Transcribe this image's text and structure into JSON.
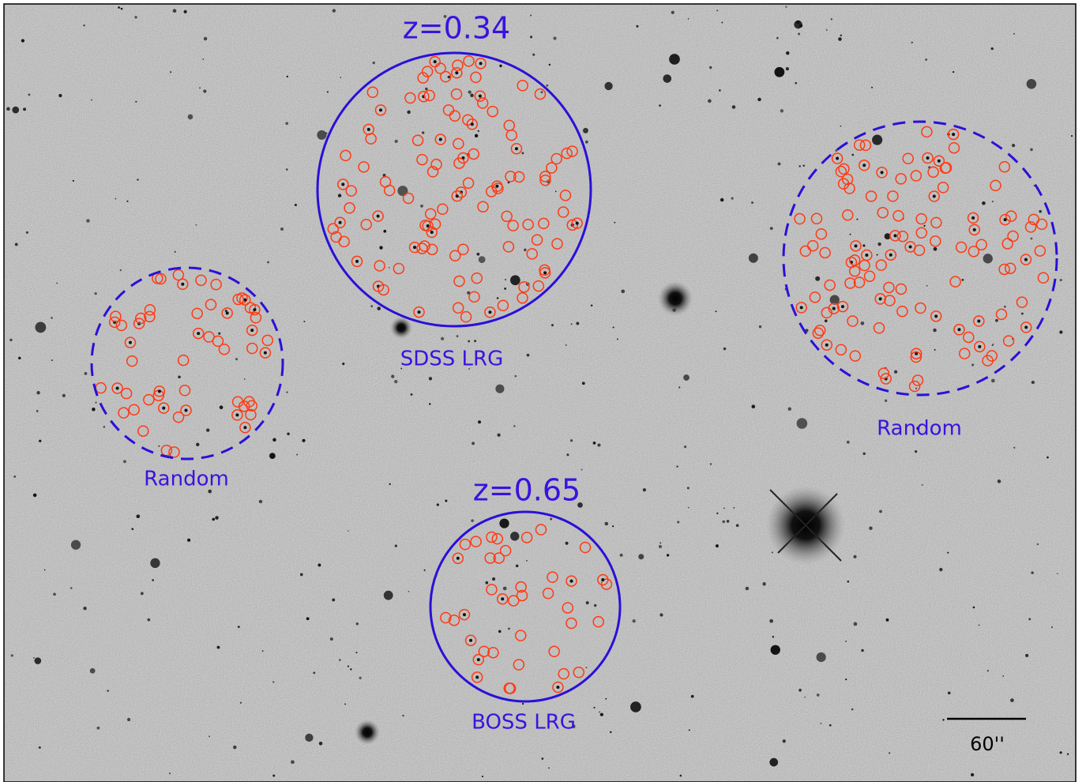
{
  "regions": [
    {
      "redshift": "z=0.34",
      "label": "SDSS LRG"
    },
    {
      "label": "Random"
    },
    {
      "redshift": "z=0.65",
      "label": "BOSS LRG"
    },
    {
      "label": "Random"
    }
  ],
  "scale_bar": {
    "label": "60''"
  }
}
